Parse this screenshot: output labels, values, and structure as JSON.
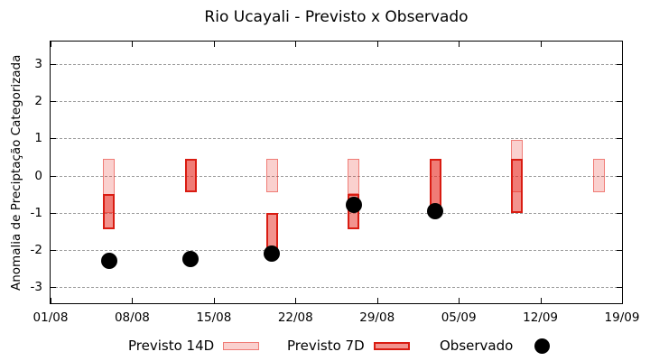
{
  "page": {
    "background": "#ffffff",
    "axes_color": "#000000",
    "grid_color": "#9c9c9c"
  },
  "chart_data": {
    "type": "bar",
    "subtype": "forecast-range-boxes-with-observed-scatter",
    "title": "Rio Ucayali - Previsto x Observado",
    "xlabel": "",
    "ylabel": "Anomalia de Preciptação Categorizada",
    "yticks": [
      3,
      2,
      1,
      0,
      -1,
      -2,
      -3
    ],
    "ylim": [
      -3.45,
      3.65
    ],
    "xticks": [
      "01/08",
      "08/08",
      "15/08",
      "22/08",
      "29/08",
      "05/09",
      "12/09",
      "19/09"
    ],
    "xlim_dates": [
      "01/08",
      "19/09"
    ],
    "x_range_days": 49,
    "grid": {
      "horizontal": true,
      "vertical": false,
      "style": "dashed"
    },
    "legend_position": "bottom",
    "series": [
      {
        "name": "Previsto 14D",
        "type": "box",
        "fill": "rgba(230,40,30,0.22)",
        "border": "rgba(230,40,30,0.5)",
        "points": [
          {
            "date": "06/08",
            "low": -1.0,
            "high": 0.45
          },
          {
            "date": "13/08",
            "low": -0.45,
            "high": 0.45
          },
          {
            "date": "20/08",
            "low": -0.45,
            "high": 0.45
          },
          {
            "date": "27/08",
            "low": -0.5,
            "high": 0.45
          },
          {
            "date": "03/09",
            "low": -0.95,
            "high": 0.45
          },
          {
            "date": "10/09",
            "low": -0.45,
            "high": 0.95
          },
          {
            "date": "17/09",
            "low": -0.45,
            "high": 0.45
          }
        ]
      },
      {
        "name": "Previsto 7D",
        "type": "box",
        "fill": "rgba(230,40,30,0.5)",
        "border": "#d91c12",
        "points": [
          {
            "date": "06/08",
            "low": -1.45,
            "high": -0.5
          },
          {
            "date": "13/08",
            "low": -0.45,
            "high": 0.45
          },
          {
            "date": "20/08",
            "low": -2.0,
            "high": -1.0
          },
          {
            "date": "27/08",
            "low": -1.45,
            "high": -0.5
          },
          {
            "date": "03/09",
            "low": -0.95,
            "high": 0.45
          },
          {
            "date": "10/09",
            "low": -1.0,
            "high": 0.45
          }
        ]
      },
      {
        "name": "Observado",
        "type": "scatter",
        "color": "#000000",
        "points": [
          {
            "date": "06/08",
            "value": -2.3
          },
          {
            "date": "13/08",
            "value": -2.25
          },
          {
            "date": "20/08",
            "value": -2.1
          },
          {
            "date": "27/08",
            "value": -0.8
          },
          {
            "date": "03/09",
            "value": -0.95
          }
        ]
      }
    ]
  }
}
